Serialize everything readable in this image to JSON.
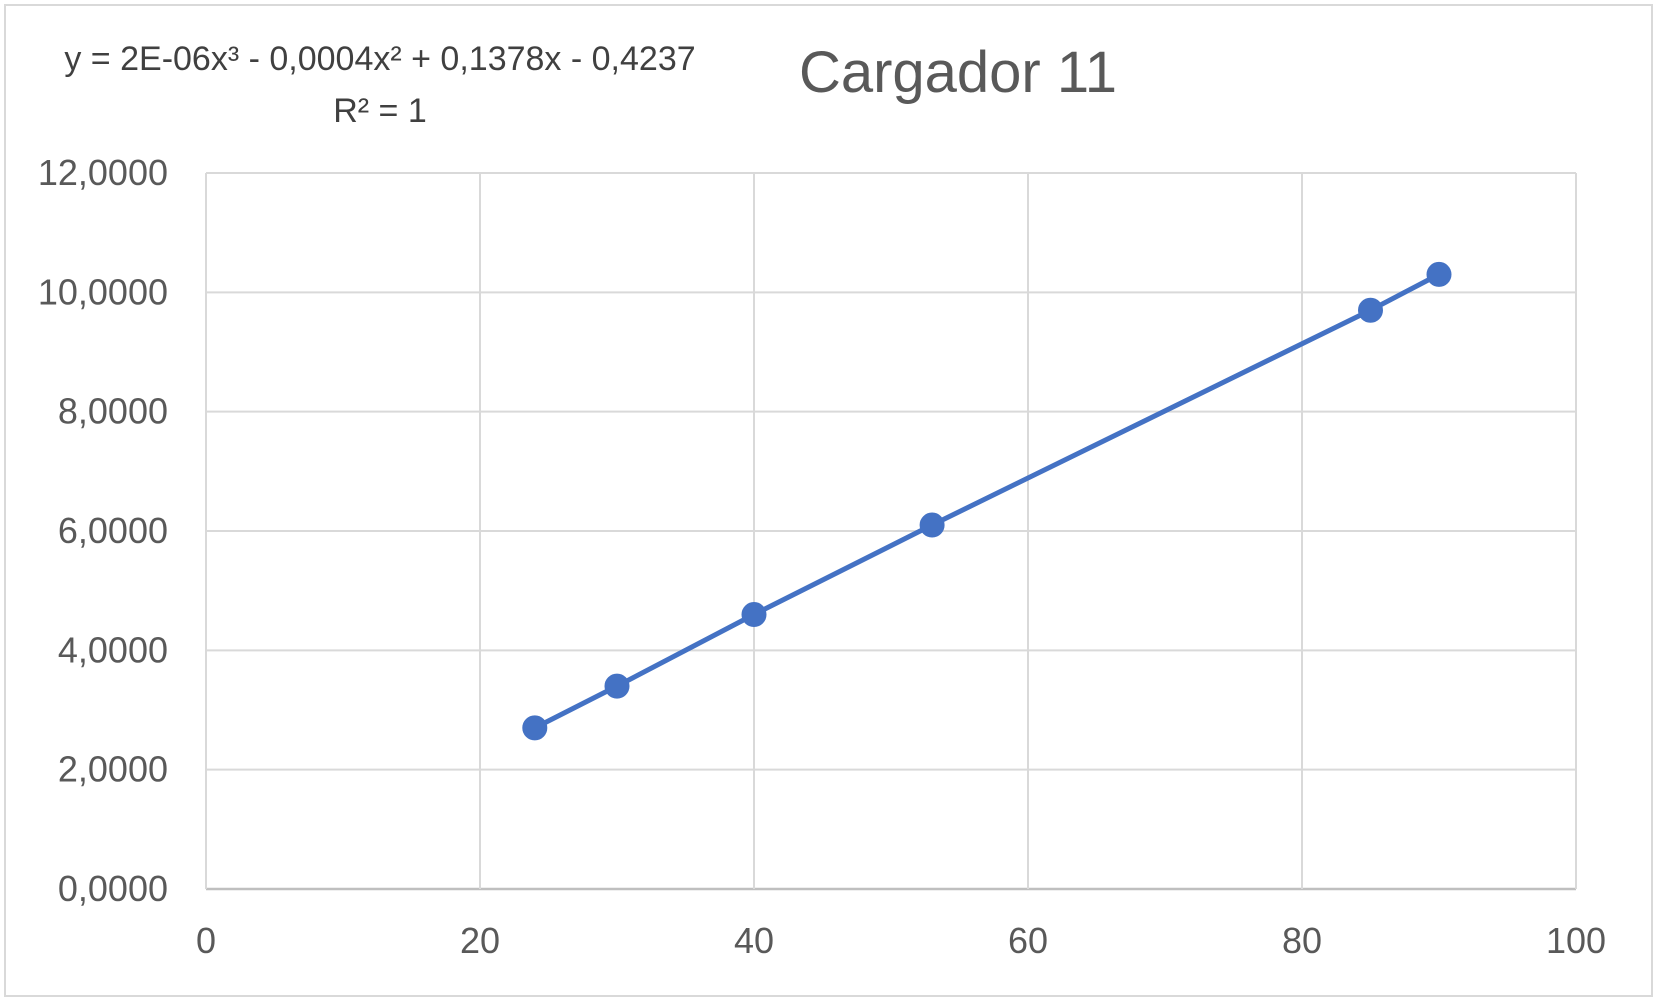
{
  "chart_data": {
    "type": "scatter",
    "title": "Cargador 11",
    "xlabel": "",
    "ylabel": "",
    "x_ticks": [
      "0",
      "20",
      "40",
      "60",
      "80",
      "100"
    ],
    "y_ticks": [
      "0,0000",
      "2,0000",
      "4,0000",
      "6,0000",
      "8,0000",
      "10,0000",
      "12,0000"
    ],
    "xlim": [
      0,
      100
    ],
    "ylim": [
      0,
      12
    ],
    "grid": true,
    "legend": "none",
    "series": [
      {
        "x": [
          24,
          30,
          40,
          53,
          85,
          90
        ],
        "y": [
          2.7,
          3.4,
          4.6,
          6.1,
          9.7,
          10.3
        ],
        "color": "#4472c4",
        "marker": "circle",
        "line": true
      }
    ],
    "trendline": {
      "type": "polynomial",
      "order": 3,
      "equation": "y = 2E-06x³ - 0,0004x² + 0,1378x - 0,4237",
      "r_squared": "R² = 1",
      "coefficients": [
        2e-06,
        -0.0004,
        0.1378,
        -0.4237
      ]
    }
  }
}
